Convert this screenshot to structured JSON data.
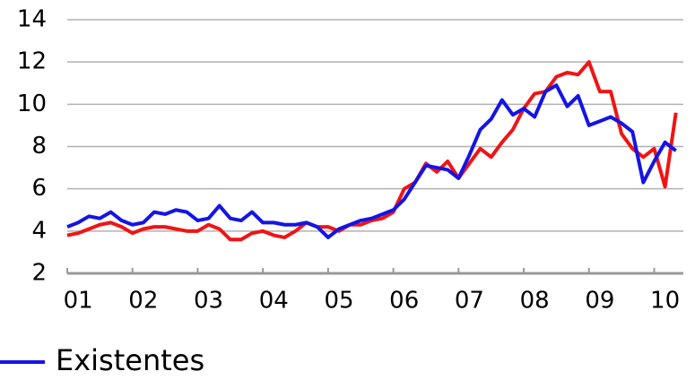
{
  "chart_data": {
    "type": "line",
    "categories": [
      null,
      "01",
      null,
      null,
      null,
      null,
      null,
      "02",
      null,
      null,
      null,
      null,
      null,
      "03",
      null,
      null,
      null,
      null,
      null,
      "04",
      null,
      null,
      null,
      null,
      null,
      "05",
      null,
      null,
      null,
      null,
      null,
      "06",
      null,
      null,
      null,
      null,
      null,
      "07",
      null,
      null,
      null,
      null,
      null,
      "08",
      null,
      null,
      null,
      null,
      null,
      "09",
      null,
      null,
      null,
      null,
      null,
      "10",
      null
    ],
    "series": [
      {
        "color": "#f01414",
        "values": [
          3.8,
          3.9,
          4.1,
          4.3,
          4.4,
          4.2,
          3.9,
          4.1,
          4.2,
          4.2,
          4.1,
          4.0,
          4.0,
          4.3,
          4.1,
          3.6,
          3.6,
          3.9,
          4.0,
          3.8,
          3.7,
          4.0,
          4.4,
          4.2,
          4.2,
          4.0,
          4.3,
          4.3,
          4.5,
          4.6,
          4.9,
          6.0,
          6.3,
          7.2,
          6.8,
          7.3,
          6.5,
          7.2,
          7.9,
          7.5,
          8.2,
          8.8,
          9.8,
          10.5,
          10.6,
          11.3,
          11.5,
          11.4,
          12.0,
          10.6,
          10.6,
          8.6,
          7.9,
          7.5,
          7.9,
          6.1,
          9.6
        ]
      },
      {
        "name": "Existentes",
        "color": "#1414e6",
        "values": [
          4.2,
          4.4,
          4.7,
          4.6,
          4.9,
          4.5,
          4.3,
          4.4,
          4.9,
          4.8,
          5.0,
          4.9,
          4.5,
          4.6,
          5.2,
          4.6,
          4.5,
          4.9,
          4.4,
          4.4,
          4.3,
          4.3,
          4.4,
          4.2,
          3.7,
          4.1,
          4.3,
          4.5,
          4.6,
          4.8,
          5.0,
          5.5,
          6.3,
          7.1,
          7.0,
          6.9,
          6.5,
          7.6,
          8.8,
          9.3,
          10.2,
          9.5,
          9.8,
          9.4,
          10.6,
          10.9,
          9.9,
          10.4,
          9.0,
          9.2,
          9.4,
          9.1,
          8.7,
          6.3,
          7.3,
          8.2,
          7.8
        ]
      }
    ],
    "ylim": [
      2,
      14
    ],
    "yticks": [
      2,
      4,
      6,
      8,
      10,
      12,
      14
    ],
    "grid": true,
    "legend": "bottom-left"
  }
}
